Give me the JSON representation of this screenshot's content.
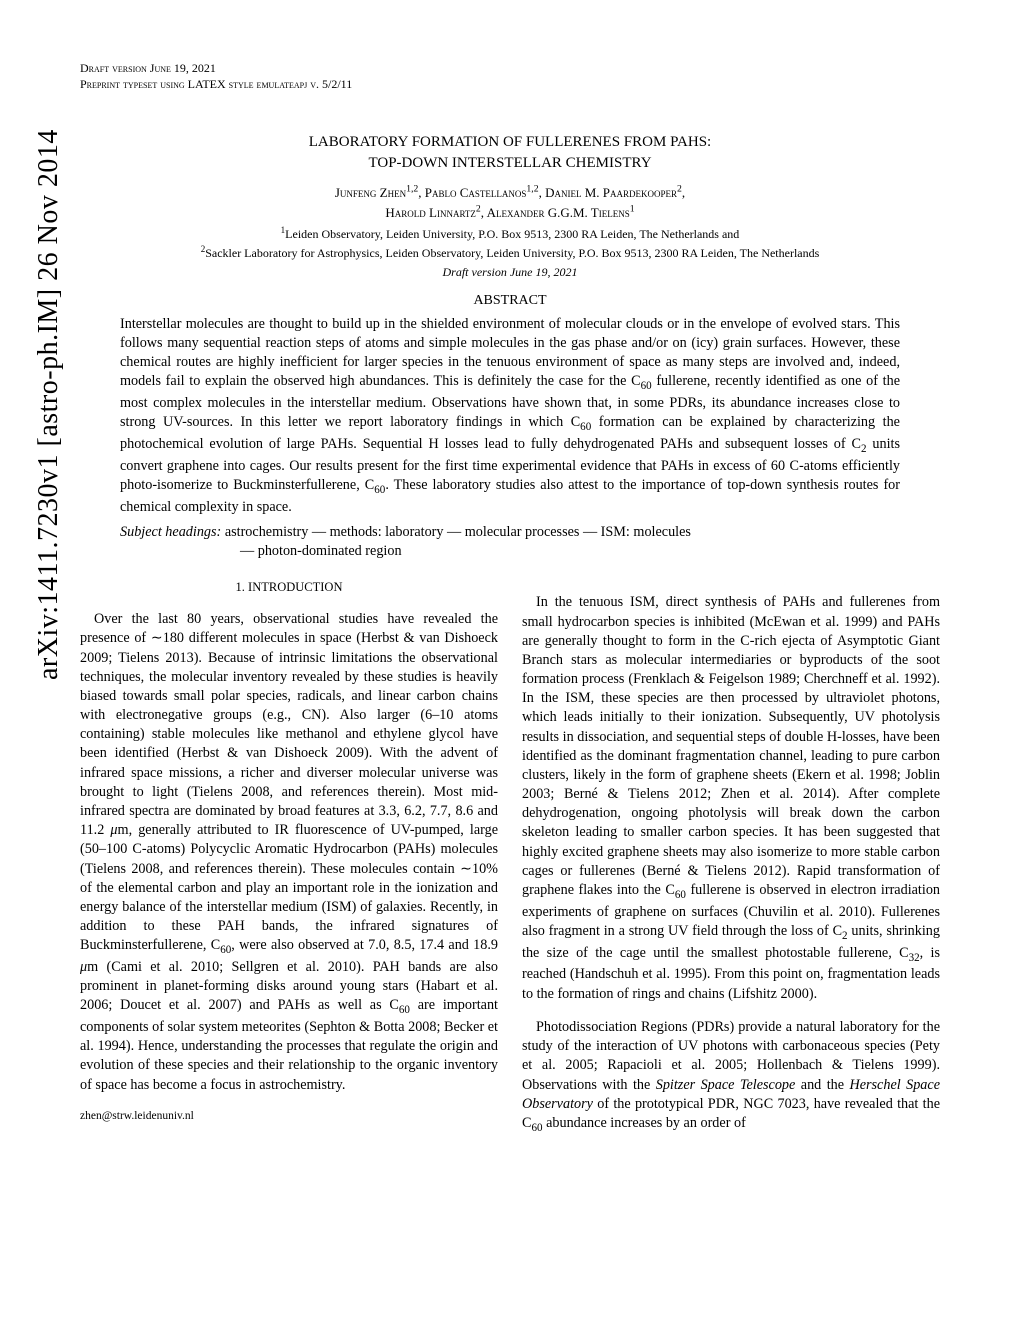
{
  "arxiv": "arXiv:1411.7230v1  [astro-ph.IM]  26 Nov 2014",
  "header": {
    "line1": "Draft version June 19, 2021",
    "line2": "Preprint typeset using LATEX style emulateapj v. 5/2/11"
  },
  "title": {
    "line1": "LABORATORY FORMATION OF FULLERENES FROM PAHS:",
    "line2": "TOP-DOWN INTERSTELLAR CHEMISTRY"
  },
  "authors": {
    "line1": "Junfeng Zhen1,2, Pablo Castellanos1,2, Daniel M. Paardekooper2,",
    "line2": "Harold Linnartz2, Alexander G.G.M. Tielens1"
  },
  "affiliations": {
    "aff1": "1Leiden Observatory, Leiden University, P.O. Box 9513, 2300 RA Leiden, The Netherlands and",
    "aff2": "2Sackler Laboratory for Astrophysics, Leiden Observatory, Leiden University, P.O. Box 9513, 2300 RA Leiden, The Netherlands",
    "date": "Draft version June 19, 2021"
  },
  "abstract_heading": "ABSTRACT",
  "abstract": "Interstellar molecules are thought to build up in the shielded environment of molecular clouds or in the envelope of evolved stars. This follows many sequential reaction steps of atoms and simple molecules in the gas phase and/or on (icy) grain surfaces. However, these chemical routes are highly inefficient for larger species in the tenuous environment of space as many steps are involved and, indeed, models fail to explain the observed high abundances. This is definitely the case for the C60 fullerene, recently identified as one of the most complex molecules in the interstellar medium. Observations have shown that, in some PDRs, its abundance increases close to strong UV-sources. In this letter we report laboratory findings in which C60 formation can be explained by characterizing the photochemical evolution of large PAHs. Sequential H losses lead to fully dehydrogenated PAHs and subsequent losses of C2 units convert graphene into cages. Our results present for the first time experimental evidence that PAHs in excess of 60 C-atoms efficiently photo-isomerize to Buckminsterfullerene, C60. These laboratory studies also attest to the importance of top-down synthesis routes for chemical complexity in space.",
  "subject_headings": {
    "label": "Subject headings:",
    "text": " astrochemistry — methods: laboratory — molecular processes — ISM: molecules — photon-dominated region"
  },
  "section1_heading": "1. INTRODUCTION",
  "col_left_p1": "Over the last 80 years, observational studies have revealed the presence of ∼180 different molecules in space (Herbst & van Dishoeck 2009; Tielens 2013). Because of intrinsic limitations the observational techniques, the molecular inventory revealed by these studies is heavily biased towards small polar species, radicals, and linear carbon chains with electronegative groups (e.g., CN). Also larger (6–10 atoms containing) stable molecules like methanol and ethylene glycol have been identified (Herbst & van Dishoeck 2009). With the advent of infrared space missions, a richer and diverser molecular universe was brought to light (Tielens 2008, and references therein). Most mid-infrared spectra are dominated by broad features at 3.3, 6.2, 7.7, 8.6 and 11.2 μm, generally attributed to IR fluorescence of UV-pumped, large (50–100 C-atoms) Polycyclic Aromatic Hydrocarbon (PAHs) molecules (Tielens 2008, and references therein). These molecules contain ∼10% of the elemental carbon and play an important role in the ionization and energy balance of the interstellar medium (ISM) of galaxies. Recently, in addition to these PAH bands, the infrared signatures of Buckminsterfullerene, C60, were also observed at 7.0, 8.5, 17.4 and 18.9 μm (Cami et al. 2010; Sellgren et al. 2010). PAH bands are also prominent in planet-forming disks around young stars (Habart et al. 2006; Doucet et al. 2007) and PAHs as well as C60 are important components of solar system meteorites (Sephton & Botta 2008; Becker et al. 1994). Hence, understanding the processes that regulate the origin and evolution of these species and their relationship to the organic inventory of space has become a focus in astrochemistry.",
  "email": "zhen@strw.leidenuniv.nl",
  "col_right_p1": "In the tenuous ISM, direct synthesis of PAHs and fullerenes from small hydrocarbon species is inhibited (McEwan et al. 1999) and PAHs are generally thought to form in the C-rich ejecta of Asymptotic Giant Branch stars as molecular intermediaries or byproducts of the soot formation process (Frenklach & Feigelson 1989; Cherchneff et al. 1992). In the ISM, these species are then processed by ultraviolet photons, which leads initially to their ionization. Subsequently, UV photolysis results in dissociation, and sequential steps of double H-losses, have been identified as the dominant fragmentation channel, leading to pure carbon clusters, likely in the form of graphene sheets (Ekern et al. 1998; Joblin 2003; Berné & Tielens 2012; Zhen et al. 2014). After complete dehydrogenation, ongoing photolysis will break down the carbon skeleton leading to smaller carbon species. It has been suggested that highly excited graphene sheets may also isomerize to more stable carbon cages or fullerenes (Berné & Tielens 2012). Rapid transformation of graphene flakes into the C60 fullerene is observed in electron irradiation experiments of graphene on surfaces (Chuvilin et al. 2010). Fullerenes also fragment in a strong UV field through the loss of C2 units, shrinking the size of the cage until the smallest photostable fullerene, C32, is reached (Handschuh et al. 1995). From this point on, fragmentation leads to the formation of rings and chains (Lifshitz 2000).",
  "col_right_p2": "Photodissociation Regions (PDRs) provide a natural laboratory for the study of the interaction of UV photons with carbonaceous species (Pety et al. 2005; Rapacioli et al. 2005; Hollenbach & Tielens 1999). Observations with the Spitzer Space Telescope and the Herschel Space Observatory of the prototypical PDR, NGC 7023, have revealed that the C60 abundance increases by an order of"
}
